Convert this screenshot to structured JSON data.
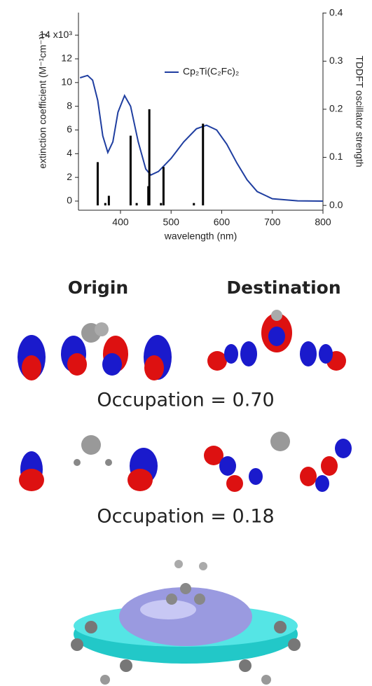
{
  "chart_data": {
    "type": "line",
    "x_label": "wavelength (nm)",
    "y_label": "extinction coefficient (M⁻¹cm⁻¹)",
    "y2_label": "TDDFT oscillator strength",
    "xlim": [
      317,
      800
    ],
    "xticks": [
      400,
      500,
      600,
      700,
      800
    ],
    "ylim": [
      -0.77,
      15.9
    ],
    "yticks": [
      0,
      2,
      4,
      6,
      8,
      10,
      12,
      {
        "value": 14,
        "label": "14 x10³"
      }
    ],
    "y2lim": [
      -0.01,
      0.401
    ],
    "y2ticks": [
      {
        "value": 0,
        "label": "0.0"
      },
      0.1,
      0.2,
      0.3,
      0.4
    ],
    "legend": "upper-center",
    "series": [
      {
        "name": "Cp₂Ti(C₂Fc)₂",
        "color": "#1f3ea0",
        "x": [
          320,
          335,
          345,
          355,
          365,
          375,
          385,
          395,
          408,
          420,
          435,
          450,
          460,
          475,
          500,
          525,
          550,
          570,
          590,
          610,
          630,
          650,
          670,
          700,
          750,
          800
        ],
        "values": [
          10.4,
          10.6,
          10.2,
          8.5,
          5.5,
          4.1,
          5.0,
          7.5,
          8.9,
          8.0,
          5.0,
          2.7,
          2.2,
          2.5,
          3.6,
          5.0,
          6.1,
          6.4,
          6.0,
          4.8,
          3.2,
          1.8,
          0.8,
          0.2,
          0.02,
          0
        ]
      },
      {
        "type": "stem",
        "axis": "y2",
        "color": "#000000",
        "x": [
          355,
          370,
          377,
          420,
          432,
          455,
          457,
          480,
          485,
          545,
          563
        ],
        "values": [
          0.09,
          0.005,
          0.02,
          0.145,
          0.005,
          0.04,
          0.2,
          0.005,
          0.08,
          0.005,
          0.17
        ]
      }
    ]
  },
  "orbitals": {
    "headers": [
      "Origin",
      "Destination"
    ],
    "occupations": [
      "Occupation = 0.70",
      "Occupation = 0.18"
    ]
  }
}
